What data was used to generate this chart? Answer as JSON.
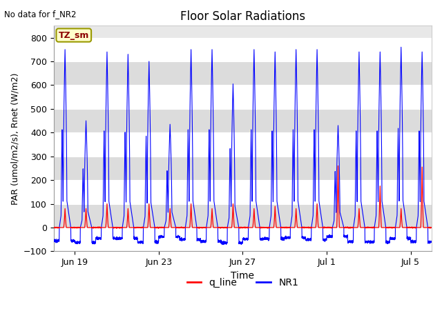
{
  "title": "Floor Solar Radiations",
  "top_left_text": "No data for f_NR2",
  "xlabel": "Time",
  "ylabel": "PAR (umol/m2/s), Rnet (W/m2)",
  "ylim": [
    -100,
    850
  ],
  "yticks": [
    -100,
    0,
    100,
    200,
    300,
    400,
    500,
    600,
    700,
    800
  ],
  "legend_labels": [
    "q_line",
    "NR1"
  ],
  "legend_colors": [
    "red",
    "blue"
  ],
  "annotation_box_text": "TZ_sm",
  "annotation_box_color": "#ffffcc",
  "annotation_text_color": "#8b0000",
  "plot_bg_color": "#e8e8e8",
  "line_q_color": "red",
  "line_NR1_color": "blue",
  "num_days": 18,
  "xtick_labels": [
    "Jun 19",
    "Jun 23",
    "Jun 27",
    "Jul 1",
    "Jul 5"
  ],
  "xtick_positions": [
    1,
    5,
    9,
    13,
    17
  ],
  "band_colors": [
    "#ffffff",
    "#dcdcdc"
  ],
  "band_ranges": [
    [
      -100,
      0
    ],
    [
      0,
      100
    ],
    [
      100,
      200
    ],
    [
      200,
      300
    ],
    [
      300,
      400
    ],
    [
      400,
      500
    ],
    [
      500,
      600
    ],
    [
      600,
      700
    ],
    [
      700,
      800
    ]
  ]
}
